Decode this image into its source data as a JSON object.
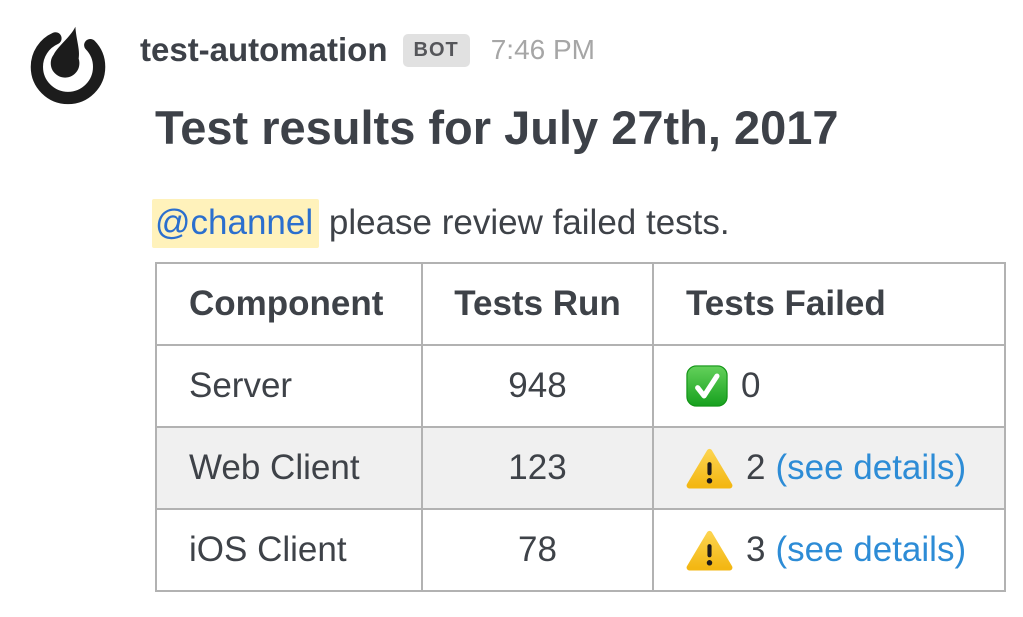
{
  "message": {
    "sender": "test-automation",
    "bot_badge": "BOT",
    "timestamp": "7:46 PM",
    "avatar_icon": "mattermost-droplet-logo"
  },
  "post": {
    "title": "Test results for July 27th, 2017",
    "mention": "@channel",
    "mention_rest": " please review failed tests."
  },
  "table": {
    "headers": [
      "Component",
      "Tests Run",
      "Tests Failed"
    ],
    "rows": [
      {
        "component": "Server",
        "tests_run": "948",
        "failed": {
          "icon": "white_check_mark",
          "count": "0",
          "link": null
        }
      },
      {
        "component": "Web Client",
        "tests_run": "123",
        "failed": {
          "icon": "warning",
          "count": "2",
          "link": "(see details)"
        }
      },
      {
        "component": "iOS Client",
        "tests_run": "78",
        "failed": {
          "icon": "warning",
          "count": "3",
          "link": "(see details)"
        }
      }
    ]
  },
  "colors": {
    "link_blue": "#2d8cd6",
    "mention_blue": "#2b6fce",
    "mention_highlight": "#fff2bb",
    "stripe_gray": "#f0f0f0",
    "table_border": "#b2b2b2",
    "badge_gray": "#e1e1e1",
    "timestamp_gray": "#a6a6a6",
    "emoji_green": "#2eb135",
    "emoji_yellow": "#f8c81c"
  }
}
